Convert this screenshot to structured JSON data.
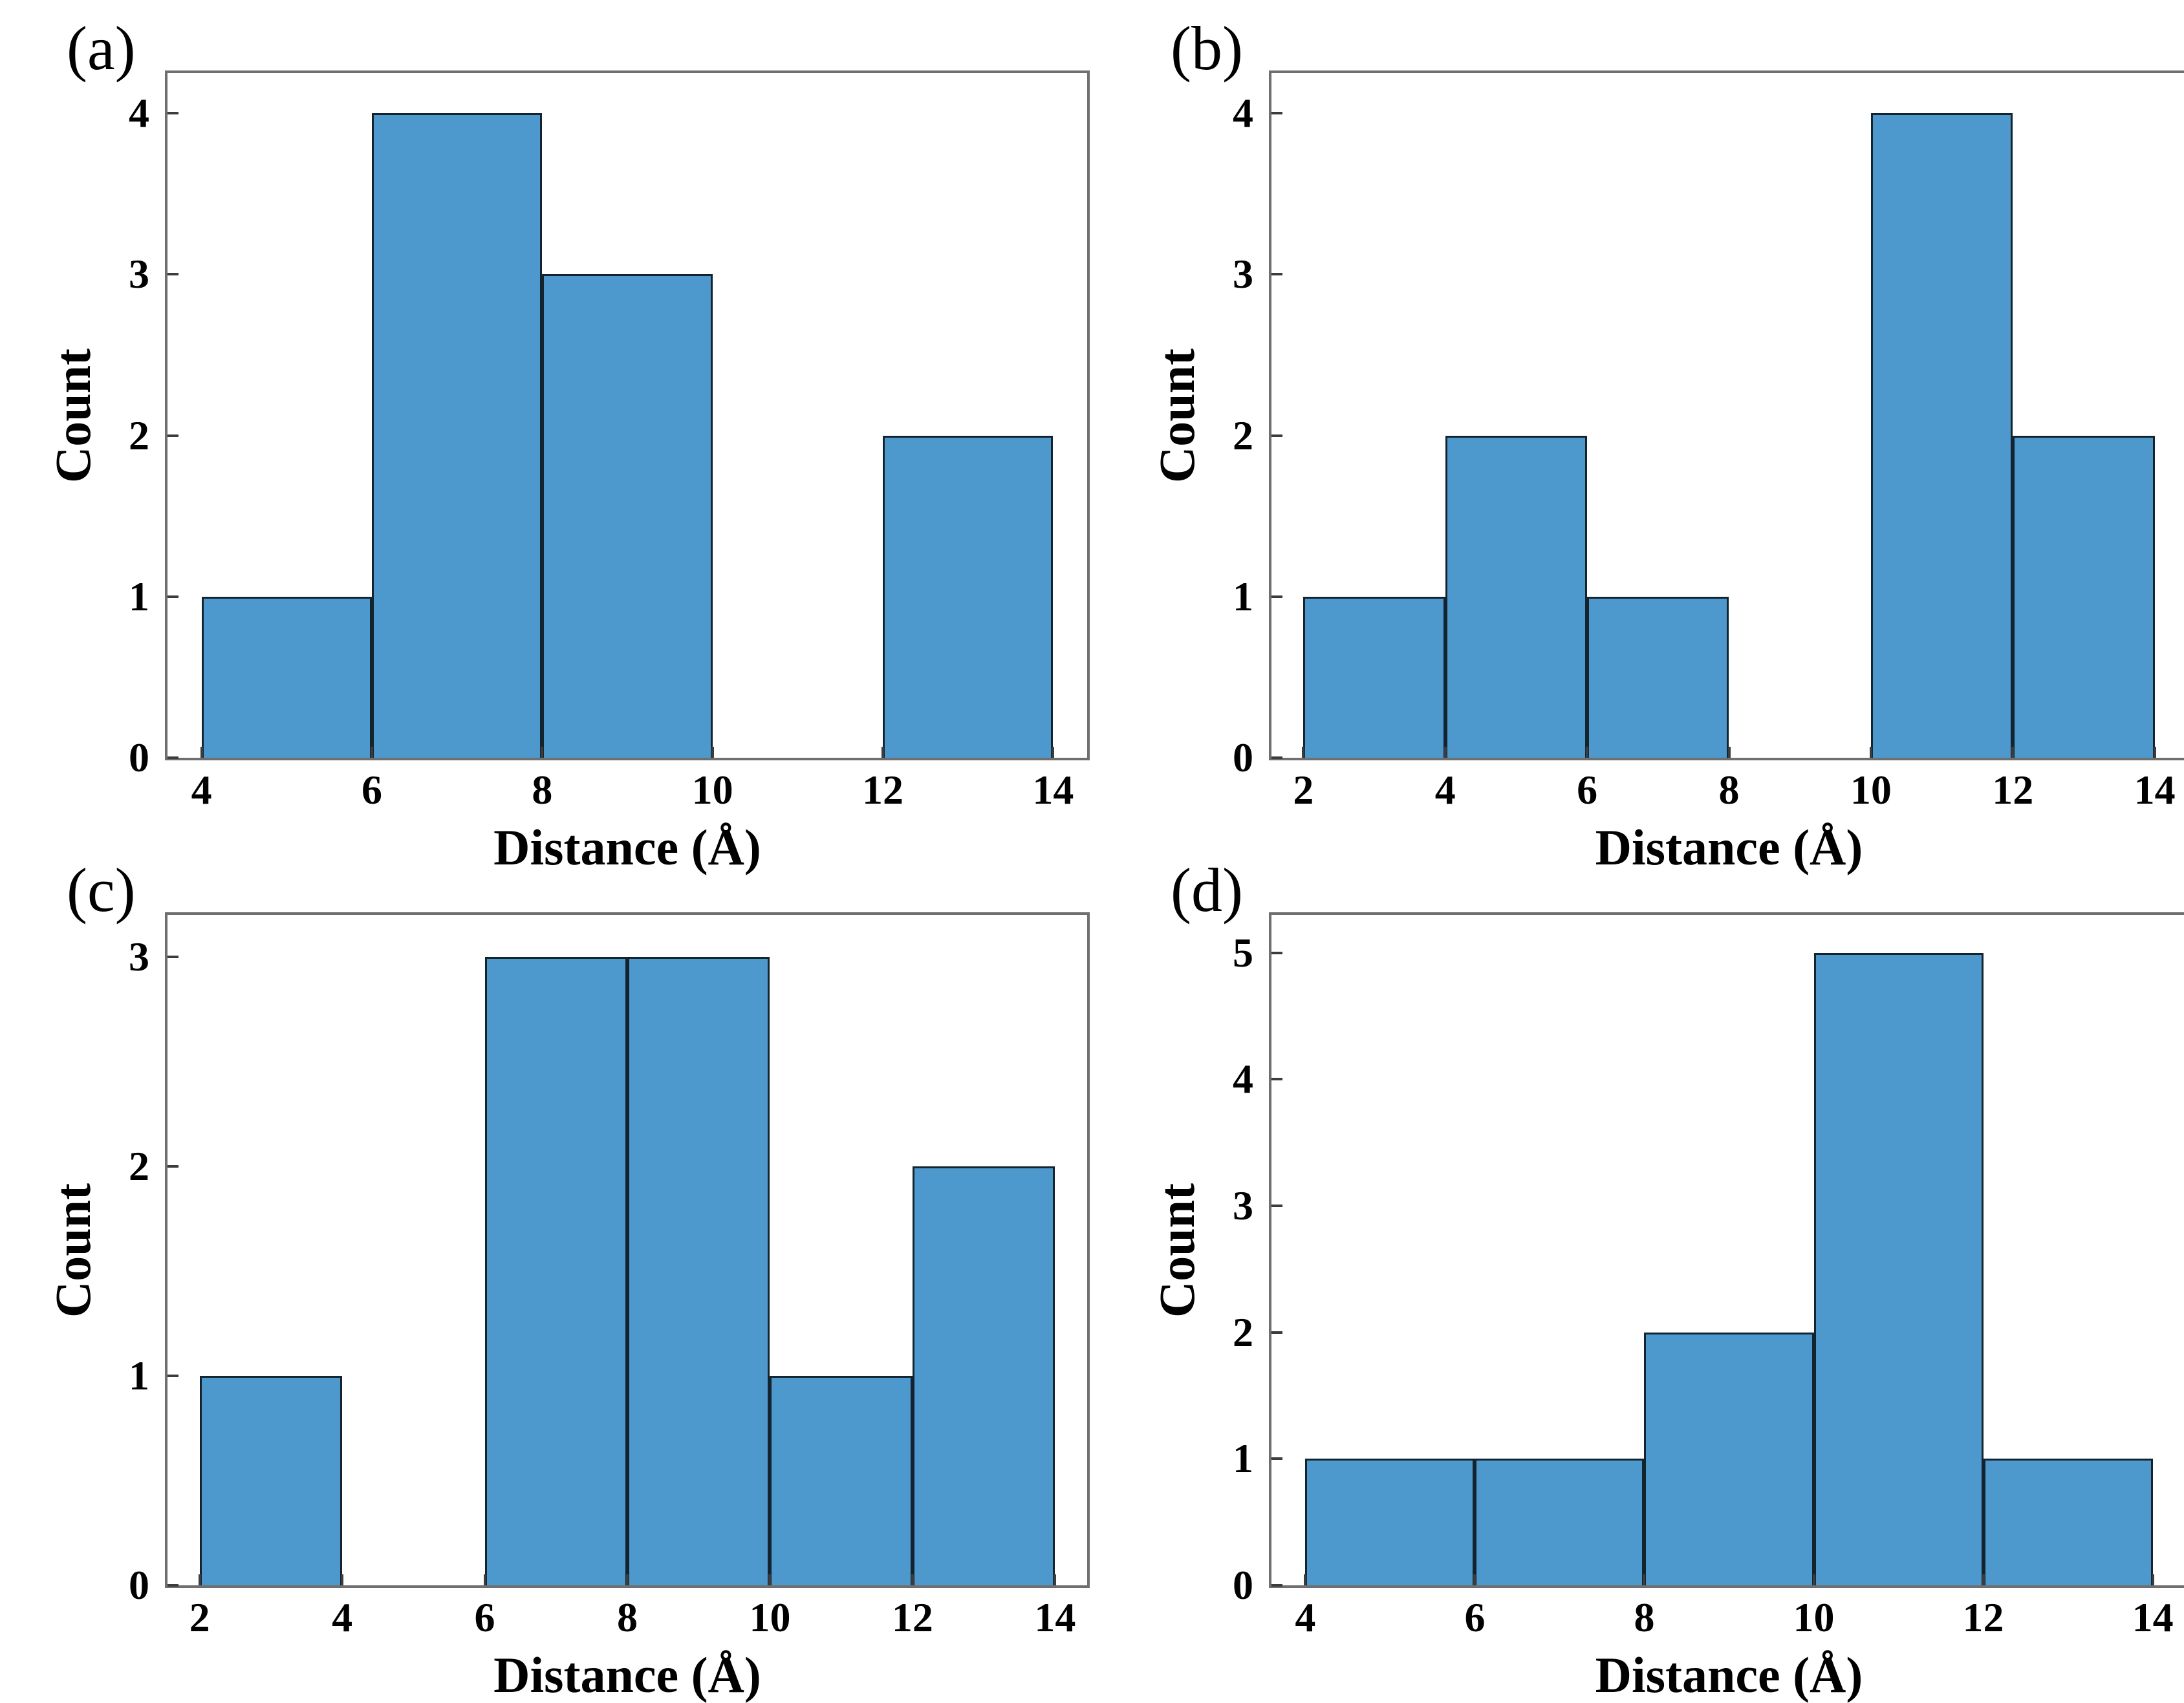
{
  "colors": {
    "bar_fill": "#4d98cd",
    "bar_edge": "#14242f",
    "spine": "#6f6f6f",
    "tick": "#3c3c3c",
    "text": "#000000"
  },
  "chart_data": [
    {
      "type": "bar",
      "panel": "(a)",
      "xlabel": "Distance (Å)",
      "ylabel": "Count",
      "bin_edges": [
        4,
        6,
        8,
        10,
        12,
        14
      ],
      "counts": [
        1,
        4,
        3,
        0,
        2
      ],
      "xticks": [
        4,
        6,
        8,
        10,
        12,
        14
      ],
      "yticks": [
        0,
        1,
        2,
        3,
        4
      ],
      "xlim": [
        3.6,
        14.4
      ],
      "ylim": [
        0,
        4.25
      ],
      "grid": false,
      "legend": null
    },
    {
      "type": "bar",
      "panel": "(b)",
      "xlabel": "Distance (Å)",
      "ylabel": "Count",
      "bin_edges": [
        2,
        4,
        6,
        8,
        10,
        12,
        14
      ],
      "counts": [
        1,
        2,
        1,
        0,
        4,
        2
      ],
      "xticks": [
        2,
        4,
        6,
        8,
        10,
        12,
        14
      ],
      "yticks": [
        0,
        1,
        2,
        3,
        4
      ],
      "xlim": [
        1.55,
        14.45
      ],
      "ylim": [
        0,
        4.25
      ],
      "grid": false,
      "legend": null
    },
    {
      "type": "bar",
      "panel": "(c)",
      "xlabel": "Distance (Å)",
      "ylabel": "Count",
      "bin_edges": [
        2,
        4,
        6,
        8,
        10,
        12,
        14
      ],
      "counts": [
        1,
        0,
        3,
        3,
        1,
        2
      ],
      "xticks": [
        2,
        4,
        6,
        8,
        10,
        12,
        14
      ],
      "yticks": [
        0,
        1,
        2,
        3
      ],
      "xlim": [
        1.55,
        14.45
      ],
      "ylim": [
        0,
        3.2
      ],
      "grid": false,
      "legend": null
    },
    {
      "type": "bar",
      "panel": "(d)",
      "xlabel": "Distance (Å)",
      "ylabel": "Count",
      "bin_edges": [
        4,
        6,
        8,
        10,
        12,
        14
      ],
      "counts": [
        1,
        1,
        2,
        5,
        1
      ],
      "xticks": [
        4,
        6,
        8,
        10,
        12,
        14
      ],
      "yticks": [
        0,
        1,
        2,
        3,
        4,
        5
      ],
      "xlim": [
        3.6,
        14.4
      ],
      "ylim": [
        0,
        5.3
      ],
      "grid": false,
      "legend": null
    }
  ]
}
